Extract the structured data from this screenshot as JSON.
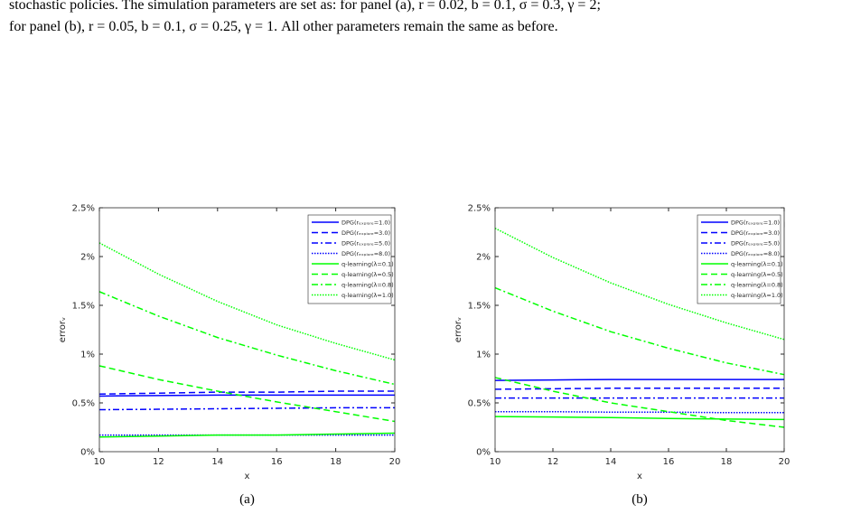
{
  "text": [
    "stochastic policies. The simulation parameters are set as: for panel (a), r = 0.02, b = 0.1, σ = 0.3, γ = 2;",
    "for panel (b), r = 0.05, b = 0.1, σ = 0.25, γ = 1. All other parameters remain the same as before."
  ],
  "chart_data": [
    {
      "type": "line",
      "caption": "(a)",
      "xlabel": "x",
      "ylabel": "errorᵥ",
      "x": [
        10,
        12,
        14,
        16,
        18,
        20
      ],
      "xlim": [
        10,
        20
      ],
      "xticks": [
        10,
        12,
        14,
        16,
        18,
        20
      ],
      "ylim": [
        0,
        2.5
      ],
      "yticks": [
        {
          "value": 0,
          "label": "0%"
        },
        {
          "value": 0.5,
          "label": "0.5%"
        },
        {
          "value": 1,
          "label": "1%"
        },
        {
          "value": 1.5,
          "label": "1.5%"
        },
        {
          "value": 2,
          "label": "2%"
        },
        {
          "value": 2.5,
          "label": "2.5%"
        }
      ],
      "legend": "upper right",
      "series": [
        {
          "name": "DPG(rₑₓₚₗₒᵣₑ=1.0)",
          "color": "#0000ff",
          "style": "solid",
          "values": [
            0.57,
            0.575,
            0.58,
            0.58,
            0.58,
            0.58
          ]
        },
        {
          "name": "DPG(rₑₓₚₗₒᵣₑ=3.0)",
          "color": "#0000ff",
          "style": "dashed",
          "values": [
            0.59,
            0.6,
            0.61,
            0.61,
            0.62,
            0.62
          ]
        },
        {
          "name": "DPG(rₑₓₚₗₒᵣₑ=5.0)",
          "color": "#0000ff",
          "style": "dashdot",
          "values": [
            0.43,
            0.435,
            0.44,
            0.445,
            0.45,
            0.45
          ]
        },
        {
          "name": "DPG(rₑₓₚₗₒᵣₑ=8.0)",
          "color": "#0000ff",
          "style": "dotted",
          "values": [
            0.17,
            0.17,
            0.17,
            0.17,
            0.17,
            0.17
          ]
        },
        {
          "name": "q-learning(λ=0.1)",
          "color": "#00ff00",
          "style": "solid",
          "values": [
            0.15,
            0.16,
            0.17,
            0.17,
            0.18,
            0.19
          ]
        },
        {
          "name": "q-learning(λ=0.5)",
          "color": "#00ff00",
          "style": "dashed",
          "values": [
            0.88,
            0.74,
            0.62,
            0.51,
            0.41,
            0.31
          ]
        },
        {
          "name": "q-learning(λ=0.8)",
          "color": "#00ff00",
          "style": "dashdot",
          "values": [
            1.64,
            1.39,
            1.17,
            0.99,
            0.83,
            0.69
          ]
        },
        {
          "name": "q-learning(λ=1.0)",
          "color": "#00ff00",
          "style": "dotted",
          "values": [
            2.14,
            1.82,
            1.54,
            1.3,
            1.11,
            0.94
          ]
        }
      ]
    },
    {
      "type": "line",
      "caption": "(b)",
      "xlabel": "x",
      "ylabel": "errorᵥ",
      "x": [
        10,
        12,
        14,
        16,
        18,
        20
      ],
      "xlim": [
        10,
        20
      ],
      "xticks": [
        10,
        12,
        14,
        16,
        18,
        20
      ],
      "ylim": [
        0,
        2.5
      ],
      "yticks": [
        {
          "value": 0,
          "label": "0%"
        },
        {
          "value": 0.5,
          "label": "0.5%"
        },
        {
          "value": 1,
          "label": "1%"
        },
        {
          "value": 1.5,
          "label": "1.5%"
        },
        {
          "value": 2,
          "label": "2%"
        },
        {
          "value": 2.5,
          "label": "2.5%"
        }
      ],
      "legend": "upper right",
      "series": [
        {
          "name": "DPG(rₑₓₚₗₒᵣₑ=1.0)",
          "color": "#0000ff",
          "style": "solid",
          "values": [
            0.73,
            0.735,
            0.74,
            0.74,
            0.74,
            0.74
          ]
        },
        {
          "name": "DPG(rₑₓₚₗₒᵣₑ=3.0)",
          "color": "#0000ff",
          "style": "dashed",
          "values": [
            0.64,
            0.645,
            0.65,
            0.65,
            0.65,
            0.65
          ]
        },
        {
          "name": "DPG(rₑₓₚₗₒᵣₑ=5.0)",
          "color": "#0000ff",
          "style": "dashdot",
          "values": [
            0.55,
            0.55,
            0.55,
            0.55,
            0.55,
            0.55
          ]
        },
        {
          "name": "DPG(rₑₓₚₗₒᵣₑ=8.0)",
          "color": "#0000ff",
          "style": "dotted",
          "values": [
            0.41,
            0.41,
            0.405,
            0.405,
            0.4,
            0.4
          ]
        },
        {
          "name": "q-learning(λ=0.1)",
          "color": "#00ff00",
          "style": "solid",
          "values": [
            0.36,
            0.355,
            0.35,
            0.34,
            0.335,
            0.33
          ]
        },
        {
          "name": "q-learning(λ=0.5)",
          "color": "#00ff00",
          "style": "dashed",
          "values": [
            0.76,
            0.62,
            0.5,
            0.41,
            0.32,
            0.25
          ]
        },
        {
          "name": "q-learning(λ=0.8)",
          "color": "#00ff00",
          "style": "dashdot",
          "values": [
            1.68,
            1.44,
            1.23,
            1.06,
            0.91,
            0.79
          ]
        },
        {
          "name": "q-learning(λ=1.0)",
          "color": "#00ff00",
          "style": "dotted",
          "values": [
            2.29,
            1.99,
            1.73,
            1.51,
            1.32,
            1.15
          ]
        }
      ]
    }
  ]
}
